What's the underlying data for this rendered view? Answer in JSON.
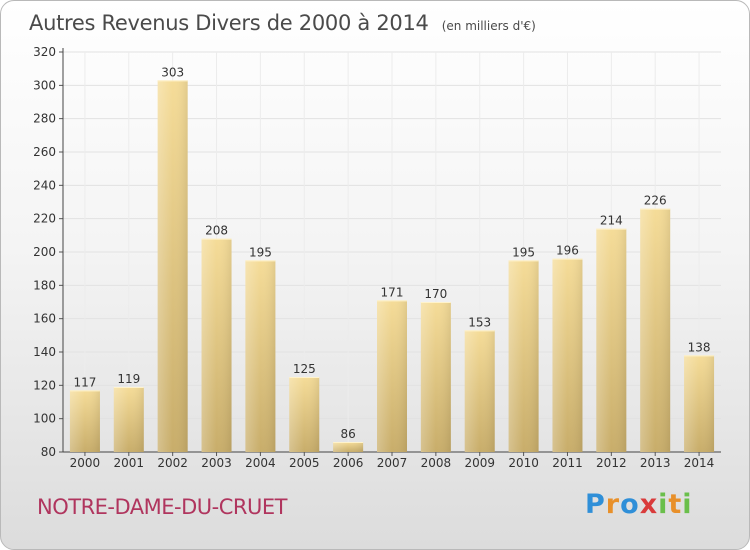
{
  "header": {
    "title": "Autres Revenus Divers de 2000 à 2014",
    "subtitle": "(en milliers d'€)"
  },
  "footer": {
    "commune": "NOTRE-DAME-DU-CRUET",
    "logo": "Proxiti"
  },
  "colors": {
    "bar_light": "#f5dc98",
    "bar_dark": "#c8ad6a",
    "commune_text": "#b0355e",
    "grid": "#e2e2e2"
  },
  "chart_data": {
    "type": "bar",
    "categories": [
      "2000",
      "2001",
      "2002",
      "2003",
      "2004",
      "2005",
      "2006",
      "2007",
      "2008",
      "2009",
      "2010",
      "2011",
      "2012",
      "2013",
      "2014"
    ],
    "values": [
      117,
      119,
      303,
      208,
      195,
      125,
      86,
      171,
      170,
      153,
      195,
      196,
      214,
      226,
      138
    ],
    "title": "Autres Revenus Divers de 2000 à 2014",
    "subtitle": "(en milliers d'€)",
    "xlabel": "",
    "ylabel": "",
    "ylim": [
      80,
      320
    ],
    "yticks": [
      80,
      100,
      120,
      140,
      160,
      180,
      200,
      220,
      240,
      260,
      280,
      300,
      320
    ],
    "grid": true,
    "data_labels": true
  }
}
